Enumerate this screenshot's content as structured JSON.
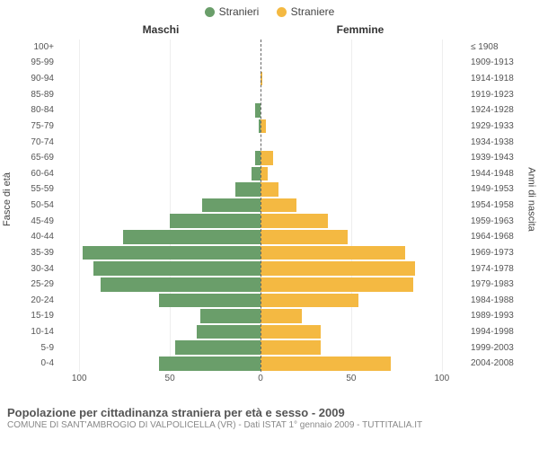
{
  "legend": {
    "male": {
      "label": "Stranieri",
      "color": "#6a9e6a"
    },
    "female": {
      "label": "Straniere",
      "color": "#f4b942"
    }
  },
  "headers": {
    "male": "Maschi",
    "female": "Femmine"
  },
  "axis": {
    "left_title": "Fasce di età",
    "right_title": "Anni di nascita",
    "xmax": 110,
    "xticks": [
      100,
      50,
      0,
      50,
      100
    ]
  },
  "colors": {
    "background": "#ffffff",
    "grid": "#eeeeee",
    "center_line": "#666666",
    "text": "#555555"
  },
  "rows": [
    {
      "age": "100+",
      "birth": "≤ 1908",
      "m": 0,
      "f": 0
    },
    {
      "age": "95-99",
      "birth": "1909-1913",
      "m": 0,
      "f": 0
    },
    {
      "age": "90-94",
      "birth": "1914-1918",
      "m": 0,
      "f": 1
    },
    {
      "age": "85-89",
      "birth": "1919-1923",
      "m": 0,
      "f": 0
    },
    {
      "age": "80-84",
      "birth": "1924-1928",
      "m": 3,
      "f": 0
    },
    {
      "age": "75-79",
      "birth": "1929-1933",
      "m": 1,
      "f": 3
    },
    {
      "age": "70-74",
      "birth": "1934-1938",
      "m": 0,
      "f": 0
    },
    {
      "age": "65-69",
      "birth": "1939-1943",
      "m": 3,
      "f": 7
    },
    {
      "age": "60-64",
      "birth": "1944-1948",
      "m": 5,
      "f": 4
    },
    {
      "age": "55-59",
      "birth": "1949-1953",
      "m": 14,
      "f": 10
    },
    {
      "age": "50-54",
      "birth": "1954-1958",
      "m": 32,
      "f": 20
    },
    {
      "age": "45-49",
      "birth": "1959-1963",
      "m": 50,
      "f": 37
    },
    {
      "age": "40-44",
      "birth": "1964-1968",
      "m": 76,
      "f": 48
    },
    {
      "age": "35-39",
      "birth": "1969-1973",
      "m": 98,
      "f": 80
    },
    {
      "age": "30-34",
      "birth": "1974-1978",
      "m": 92,
      "f": 85
    },
    {
      "age": "25-29",
      "birth": "1979-1983",
      "m": 88,
      "f": 84
    },
    {
      "age": "20-24",
      "birth": "1984-1988",
      "m": 56,
      "f": 54
    },
    {
      "age": "15-19",
      "birth": "1989-1993",
      "m": 33,
      "f": 23
    },
    {
      "age": "10-14",
      "birth": "1994-1998",
      "m": 35,
      "f": 33
    },
    {
      "age": "5-9",
      "birth": "1999-2003",
      "m": 47,
      "f": 33
    },
    {
      "age": "0-4",
      "birth": "2004-2008",
      "m": 56,
      "f": 72
    }
  ],
  "footer": {
    "title": "Popolazione per cittadinanza straniera per età e sesso - 2009",
    "subtitle": "COMUNE DI SANT'AMBROGIO DI VALPOLICELLA (VR) - Dati ISTAT 1° gennaio 2009 - TUTTITALIA.IT"
  }
}
